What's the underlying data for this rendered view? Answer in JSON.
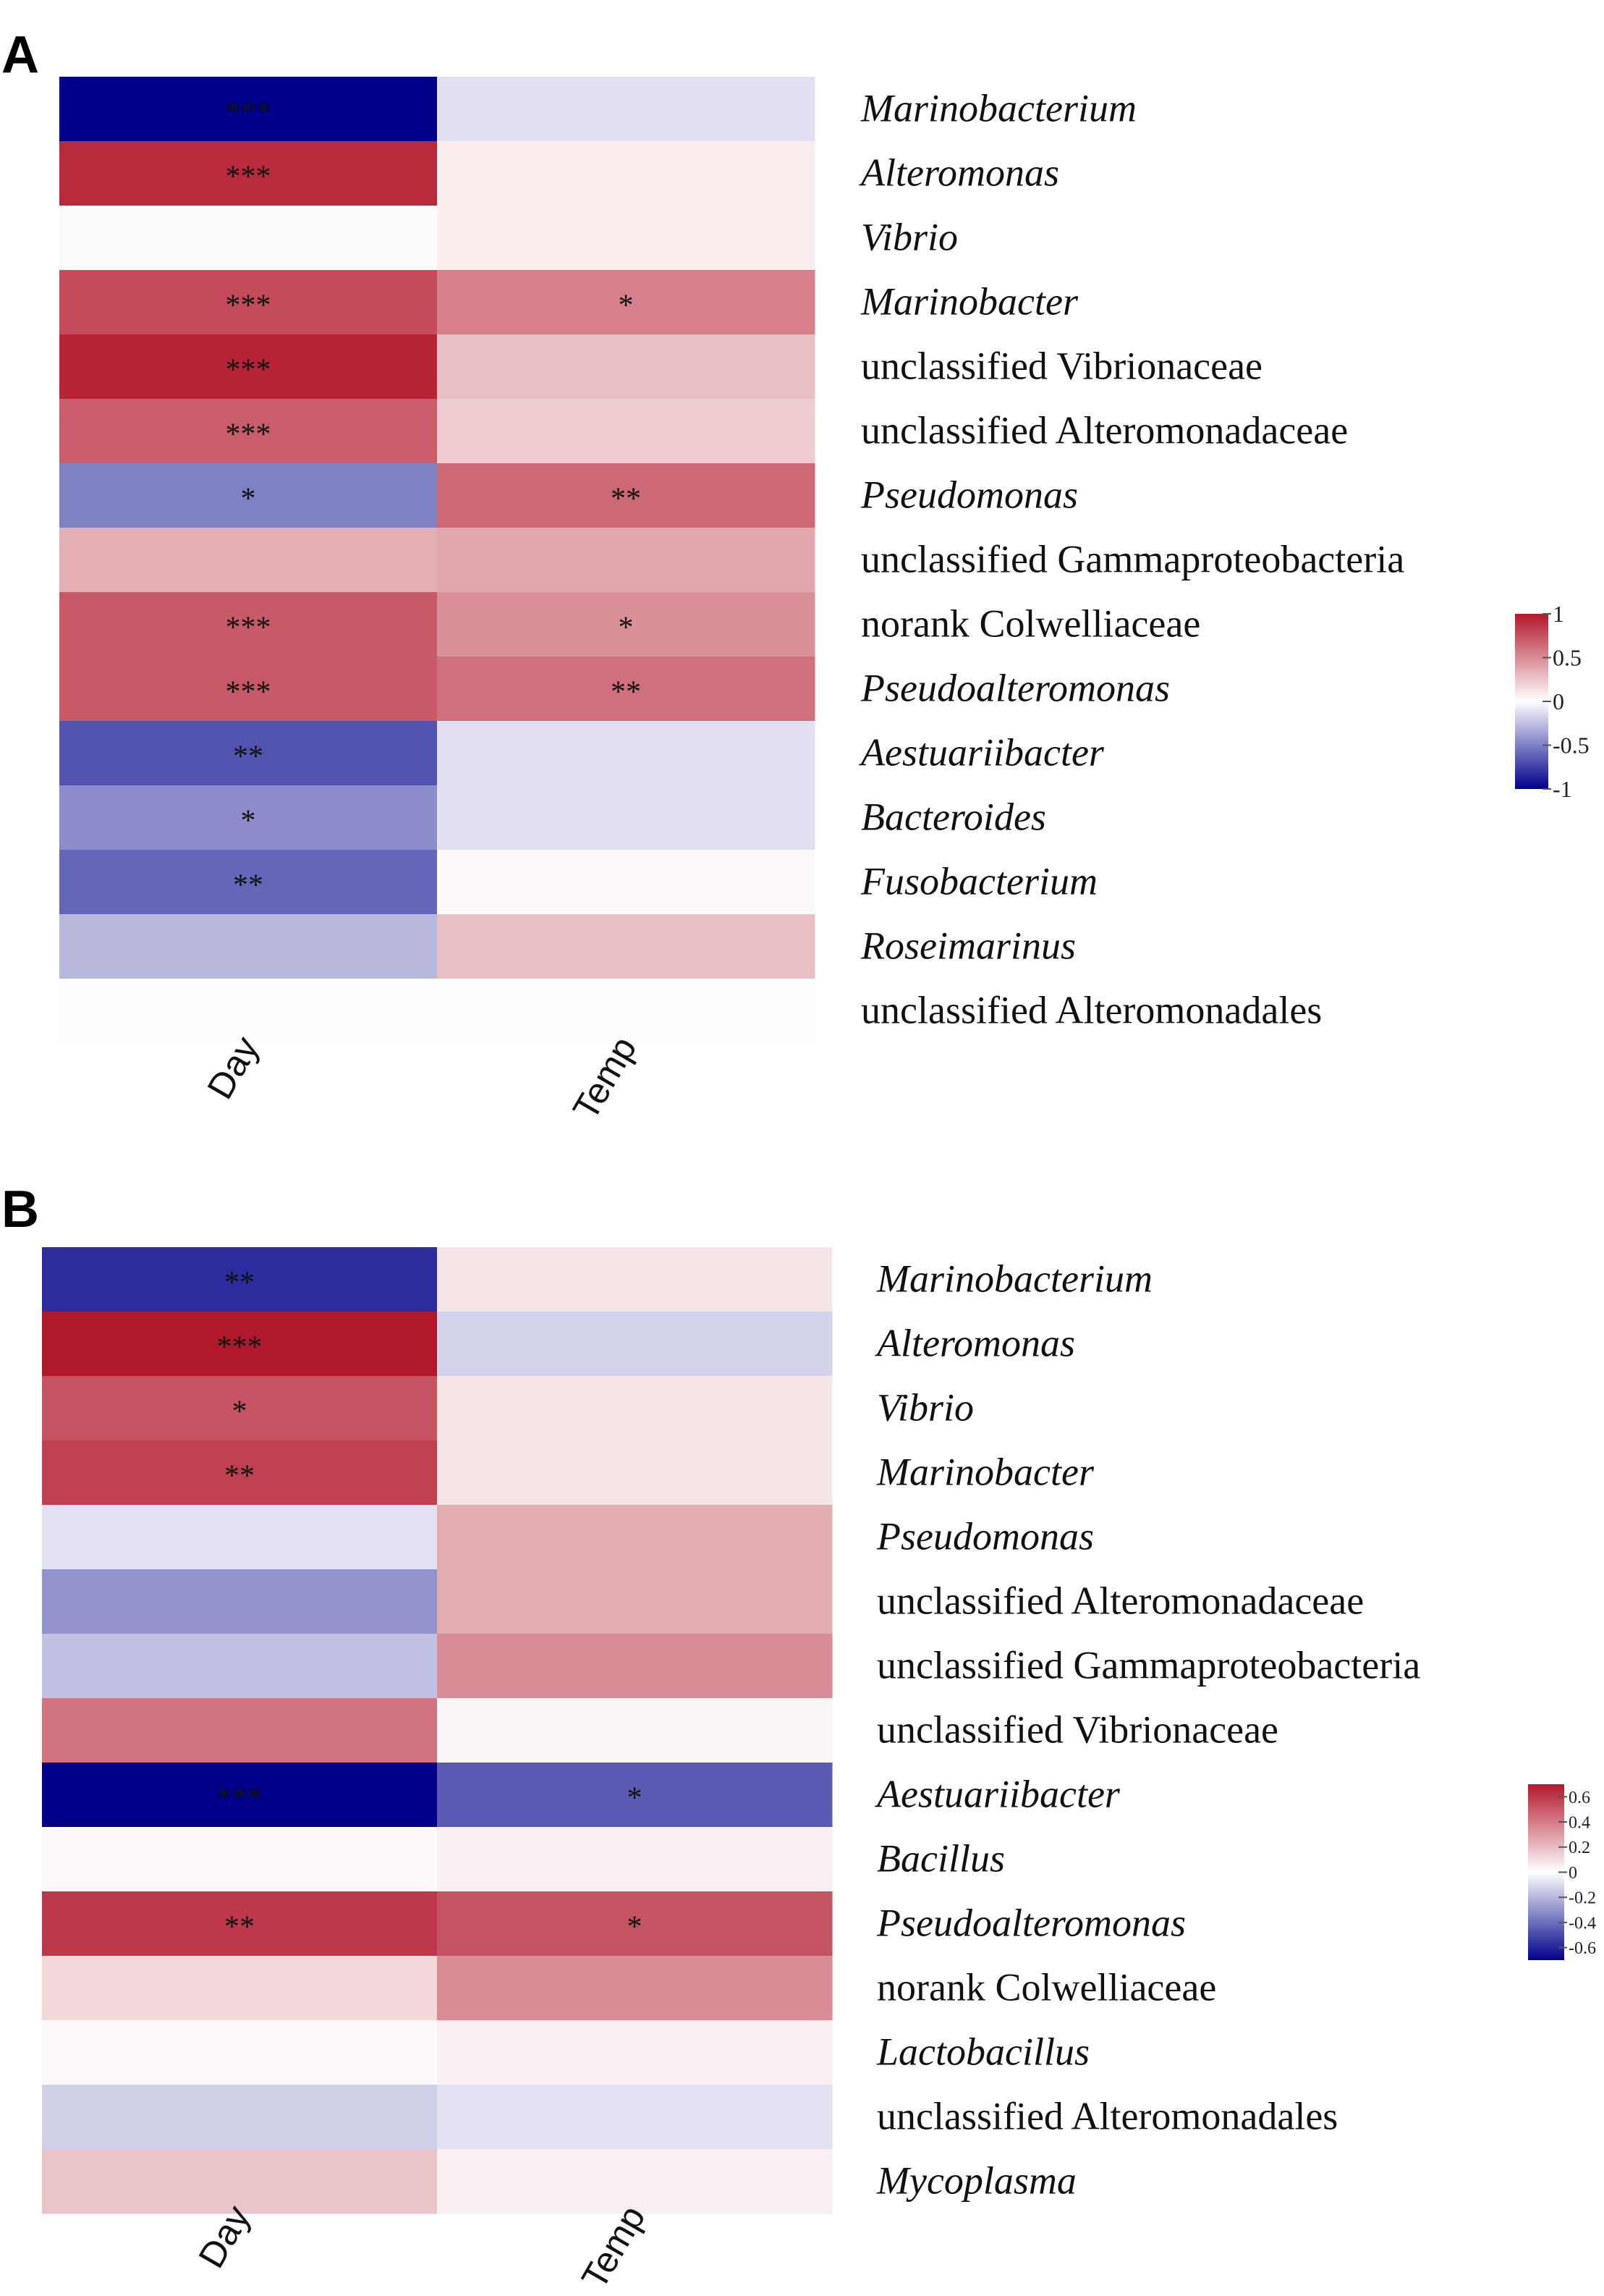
{
  "chart_data": [
    {
      "type": "heatmap",
      "panel_label": "A",
      "columns": [
        "Day",
        "Temp"
      ],
      "rows": [
        {
          "label": "Marinobacterium",
          "italic": true,
          "values": [
            -1.0,
            -0.12
          ],
          "sig": [
            "***",
            ""
          ]
        },
        {
          "label": "Alteromonas",
          "italic": true,
          "values": [
            0.92,
            0.08
          ],
          "sig": [
            "***",
            ""
          ]
        },
        {
          "label": "Vibrio",
          "italic": true,
          "values": [
            0.02,
            0.08
          ],
          "sig": [
            "",
            ""
          ]
        },
        {
          "label": "Marinobacter",
          "italic": true,
          "values": [
            0.78,
            0.55
          ],
          "sig": [
            "***",
            "*"
          ]
        },
        {
          "label": "unclassified Vibrionaceae",
          "italic": false,
          "values": [
            0.95,
            0.28
          ],
          "sig": [
            "***",
            ""
          ]
        },
        {
          "label": "unclassified Alteromonadaceae",
          "italic": false,
          "values": [
            0.7,
            0.22
          ],
          "sig": [
            "***",
            ""
          ]
        },
        {
          "label": "Pseudomonas",
          "italic": true,
          "values": [
            -0.5,
            0.65
          ],
          "sig": [
            "*",
            "**"
          ]
        },
        {
          "label": "unclassified  Gammaproteobacteria",
          "italic": false,
          "values": [
            0.35,
            0.38
          ],
          "sig": [
            "",
            ""
          ]
        },
        {
          "label": "norank Colwelliaceae",
          "italic": false,
          "values": [
            0.72,
            0.48
          ],
          "sig": [
            "***",
            "*"
          ]
        },
        {
          "label": "Pseudoalteromonas",
          "italic": true,
          "values": [
            0.72,
            0.62
          ],
          "sig": [
            "***",
            "**"
          ]
        },
        {
          "label": "Aestuariibacter",
          "italic": true,
          "values": [
            -0.68,
            -0.12
          ],
          "sig": [
            "**",
            ""
          ]
        },
        {
          "label": "Bacteroides",
          "italic": true,
          "values": [
            -0.45,
            -0.12
          ],
          "sig": [
            "*",
            ""
          ]
        },
        {
          "label": "Fusobacterium",
          "italic": true,
          "values": [
            -0.6,
            0.03
          ],
          "sig": [
            "**",
            ""
          ]
        },
        {
          "label": "Roseimarinus",
          "italic": true,
          "values": [
            -0.28,
            0.28
          ],
          "sig": [
            "",
            ""
          ]
        },
        {
          "label": "unclassified Alteromonadales",
          "italic": false,
          "values": [
            0.01,
            0.01
          ],
          "sig": [
            "",
            ""
          ]
        }
      ],
      "legend": {
        "min": -1,
        "max": 1,
        "ticks": [
          1,
          0.5,
          0,
          -0.5,
          -1
        ],
        "tick_labels": [
          "1",
          "0.5",
          "0",
          "-0.5",
          "-1"
        ]
      },
      "colors": {
        "low": "#00008b",
        "mid": "#ffffff",
        "high": "#b2182b"
      }
    },
    {
      "type": "heatmap",
      "panel_label": "B",
      "columns": [
        "Day",
        "Temp"
      ],
      "rows": [
        {
          "label": "Marinobacterium",
          "italic": true,
          "values": [
            -0.58,
            0.08
          ],
          "sig": [
            "**",
            ""
          ]
        },
        {
          "label": "Alteromonas",
          "italic": true,
          "values": [
            0.7,
            -0.12
          ],
          "sig": [
            "***",
            ""
          ]
        },
        {
          "label": "Vibrio",
          "italic": true,
          "values": [
            0.52,
            0.08
          ],
          "sig": [
            "*",
            ""
          ]
        },
        {
          "label": "Marinobacter",
          "italic": true,
          "values": [
            0.58,
            0.08
          ],
          "sig": [
            "**",
            ""
          ]
        },
        {
          "label": "Pseudomonas",
          "italic": true,
          "values": [
            -0.08,
            0.25
          ],
          "sig": [
            "",
            ""
          ]
        },
        {
          "label": "unclassified Alteromonadaceae",
          "italic": false,
          "values": [
            -0.3,
            0.25
          ],
          "sig": [
            "",
            ""
          ]
        },
        {
          "label": "unclassified Gammaproteobacteria",
          "italic": false,
          "values": [
            -0.17,
            0.35
          ],
          "sig": [
            "",
            ""
          ]
        },
        {
          "label": "unclassified Vibrionaceae",
          "italic": false,
          "values": [
            0.42,
            0.03
          ],
          "sig": [
            "",
            ""
          ]
        },
        {
          "label": "Aestuariibacter",
          "italic": true,
          "values": [
            -0.7,
            -0.45
          ],
          "sig": [
            "***",
            "*"
          ]
        },
        {
          "label": "Bacillus",
          "italic": true,
          "values": [
            0.02,
            0.05
          ],
          "sig": [
            "",
            ""
          ]
        },
        {
          "label": "Pseudoalteromonas",
          "italic": true,
          "values": [
            0.6,
            0.52
          ],
          "sig": [
            "**",
            "*"
          ]
        },
        {
          "label": "norank Colwelliaceae",
          "italic": false,
          "values": [
            0.12,
            0.35
          ],
          "sig": [
            "",
            ""
          ]
        },
        {
          "label": "Lactobacillus",
          "italic": true,
          "values": [
            0.02,
            0.05
          ],
          "sig": [
            "",
            ""
          ]
        },
        {
          "label": "unclassified Alteromonadales",
          "italic": false,
          "values": [
            -0.13,
            -0.08
          ],
          "sig": [
            "",
            ""
          ]
        },
        {
          "label": "Mycoplasma",
          "italic": true,
          "values": [
            0.18,
            0.05
          ],
          "sig": [
            "",
            ""
          ]
        }
      ],
      "legend": {
        "min": -0.7,
        "max": 0.7,
        "ticks": [
          0.6,
          0.4,
          0.2,
          0,
          -0.2,
          -0.4,
          -0.6
        ],
        "tick_labels": [
          "0.6",
          "0.4",
          "0.2",
          "0",
          "-0.2",
          "-0.4",
          "-0.6"
        ]
      },
      "colors": {
        "low": "#00008b",
        "mid": "#ffffff",
        "high": "#b2182b"
      }
    }
  ]
}
